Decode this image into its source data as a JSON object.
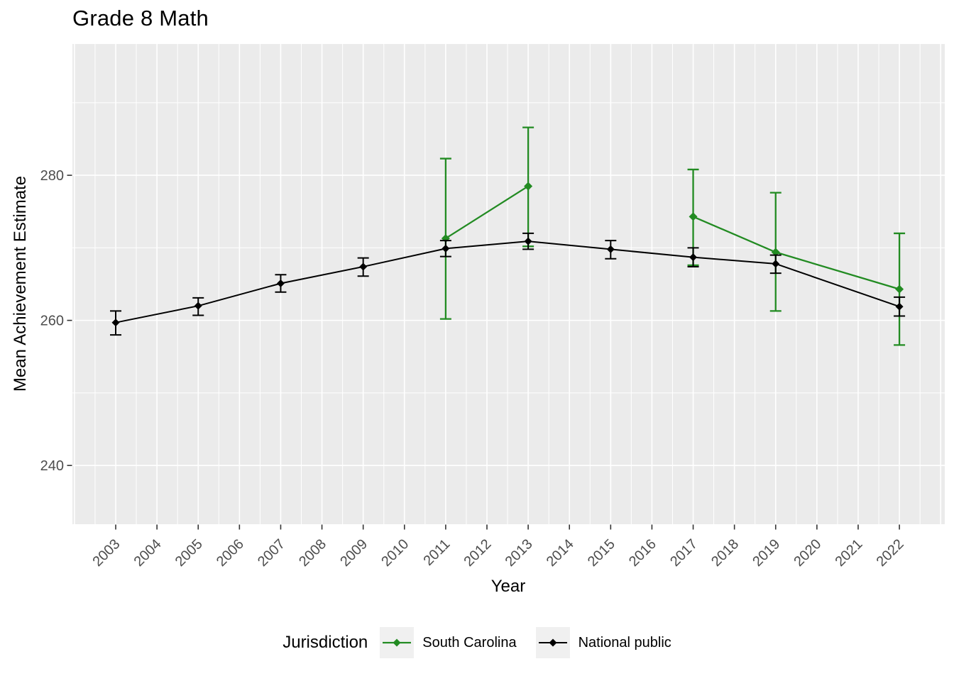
{
  "chart_data": {
    "type": "line",
    "title": "Grade 8 Math",
    "xlabel": "Year",
    "ylabel": "Mean Achievement Estimate",
    "x_ticks": [
      2003,
      2004,
      2005,
      2006,
      2007,
      2008,
      2009,
      2010,
      2011,
      2012,
      2013,
      2014,
      2015,
      2016,
      2017,
      2018,
      2019,
      2020,
      2021,
      2022
    ],
    "y_ticks": [
      240,
      260,
      280
    ],
    "y_minor_ticks": [
      250,
      270,
      290
    ],
    "xlim": [
      2001.95,
      2023.1
    ],
    "ylim": [
      231.9,
      298.1
    ],
    "grid": true,
    "error_bars": true,
    "legend": {
      "title": "Jurisdiction",
      "position": "bottom"
    },
    "series": [
      {
        "name": "South Carolina",
        "color": "#228B22",
        "points": [
          {
            "year": 2011,
            "value": 271.3,
            "low": 260.2,
            "high": 282.3
          },
          {
            "year": 2013,
            "value": 278.5,
            "low": 270.2,
            "high": 286.6
          },
          {
            "year": 2017,
            "value": 274.3,
            "low": 267.6,
            "high": 280.8
          },
          {
            "year": 2019,
            "value": 269.4,
            "low": 261.3,
            "high": 277.6
          },
          {
            "year": 2022,
            "value": 264.3,
            "low": 256.6,
            "high": 272.0
          }
        ],
        "line_segments": [
          [
            2011,
            2013
          ],
          [
            2017,
            2019,
            2022
          ]
        ]
      },
      {
        "name": "National public",
        "color": "#000000",
        "points": [
          {
            "year": 2003,
            "value": 259.7,
            "low": 258.0,
            "high": 261.3
          },
          {
            "year": 2005,
            "value": 262.0,
            "low": 260.7,
            "high": 263.1
          },
          {
            "year": 2007,
            "value": 265.1,
            "low": 263.9,
            "high": 266.3
          },
          {
            "year": 2009,
            "value": 267.4,
            "low": 266.1,
            "high": 268.6
          },
          {
            "year": 2011,
            "value": 269.9,
            "low": 268.8,
            "high": 271.0
          },
          {
            "year": 2013,
            "value": 270.9,
            "low": 269.8,
            "high": 272.0
          },
          {
            "year": 2015,
            "value": 269.8,
            "low": 268.5,
            "high": 271.0
          },
          {
            "year": 2017,
            "value": 268.7,
            "low": 267.4,
            "high": 270.0
          },
          {
            "year": 2019,
            "value": 267.8,
            "low": 266.5,
            "high": 269.0
          },
          {
            "year": 2022,
            "value": 261.9,
            "low": 260.6,
            "high": 263.2
          }
        ],
        "line_segments": [
          [
            2003,
            2005,
            2007,
            2009,
            2011,
            2013,
            2015,
            2017,
            2019,
            2022
          ]
        ]
      }
    ]
  },
  "colors": {
    "south_carolina": "#228B22",
    "national_public": "#000000",
    "panel_background": "#EBEBEB",
    "gridline": "#FFFFFF",
    "tick_label": "#4D4D4D",
    "tick_mark": "#333333",
    "legend_key_background": "#F0F0F0",
    "text": "#000000",
    "figure_background": "#FFFFFF"
  }
}
